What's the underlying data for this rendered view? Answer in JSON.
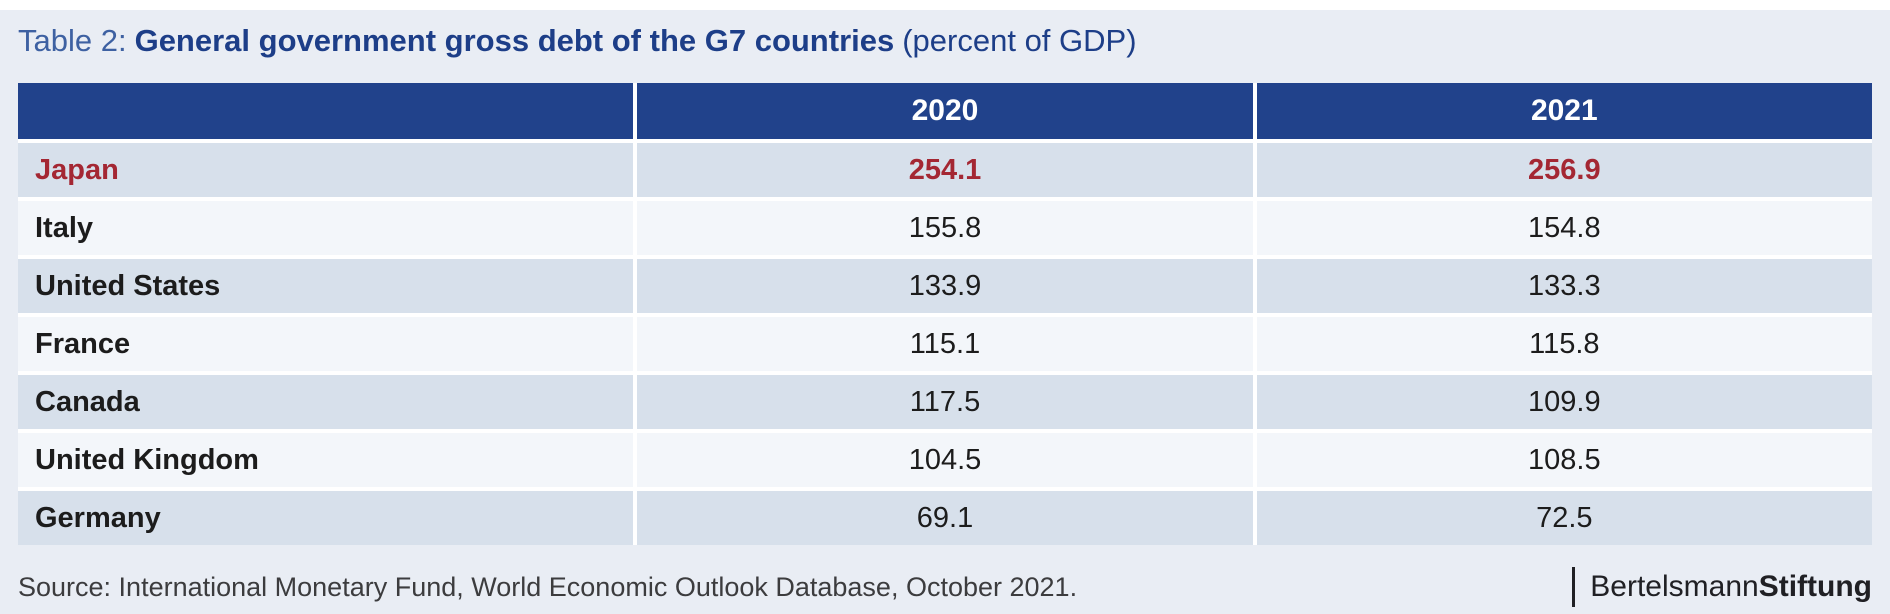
{
  "title": {
    "prefix": "Table 2:",
    "main": "General government gross debt of the G7 countries",
    "suffix": "(percent of GDP)"
  },
  "table": {
    "columns": [
      "",
      "2020",
      "2021"
    ],
    "rows": [
      {
        "country": "Japan",
        "v2020": "254.1",
        "v2021": "256.9",
        "highlight": true
      },
      {
        "country": "Italy",
        "v2020": "155.8",
        "v2021": "154.8",
        "highlight": false
      },
      {
        "country": "United States",
        "v2020": "133.9",
        "v2021": "133.3",
        "highlight": false
      },
      {
        "country": "France",
        "v2020": "115.1",
        "v2021": "115.8",
        "highlight": false
      },
      {
        "country": "Canada",
        "v2020": "117.5",
        "v2021": "109.9",
        "highlight": false
      },
      {
        "country": "United Kingdom",
        "v2020": "104.5",
        "v2021": "108.5",
        "highlight": false
      },
      {
        "country": "Germany",
        "v2020": "69.1",
        "v2021": "72.5",
        "highlight": false
      }
    ]
  },
  "footer": {
    "source": "Source: International Monetary Fund, World Economic Outlook Database, October 2021.",
    "logo": {
      "part1": "Bertelsmann",
      "part2": "Stiftung"
    }
  },
  "colors": {
    "page_background": "#e9edf4",
    "header_blue": "#21428b",
    "row_dark": "#d7e0eb",
    "row_light": "#f3f6fa",
    "highlight_red": "#a42733",
    "title_prefix_blue": "#3e61a2",
    "title_blue": "#1d3e88",
    "separator_white": "#ffffff"
  },
  "chart_data": {
    "type": "table",
    "title": "Table 2: General government gross debt of the G7 countries (percent of GDP)",
    "categories": [
      "Japan",
      "Italy",
      "United States",
      "France",
      "Canada",
      "United Kingdom",
      "Germany"
    ],
    "series": [
      {
        "name": "2020",
        "values": [
          254.1,
          155.8,
          133.9,
          115.1,
          117.5,
          104.5,
          69.1
        ]
      },
      {
        "name": "2021",
        "values": [
          256.9,
          154.8,
          133.3,
          115.8,
          109.9,
          108.5,
          72.5
        ]
      }
    ],
    "highlighted_row": "Japan",
    "source": "Source: International Monetary Fund, World Economic Outlook Database, October 2021.",
    "branding": "BertelsmannStiftung"
  }
}
